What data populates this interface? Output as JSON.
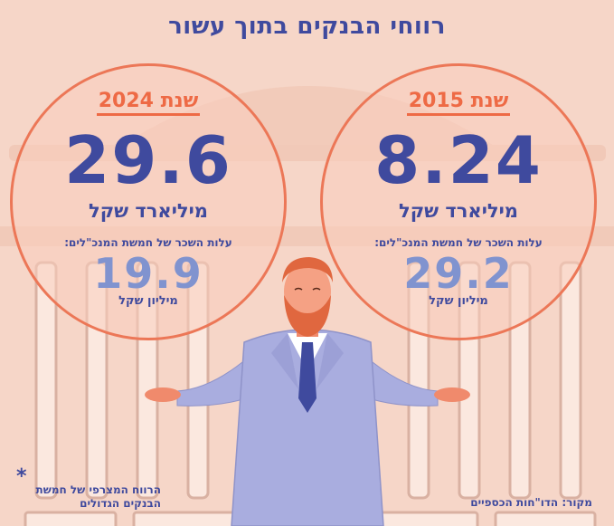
{
  "title": "רווחי הבנקים בתוך עשור",
  "panels": [
    {
      "year_label": "שנת 2015",
      "profit_value": "8.24",
      "profit_unit": "מיליארד שקל",
      "salary_desc": "עלות השכר של חמשת המנכ\"לים:",
      "salary_value": "29.2",
      "salary_unit": "מיליון שקל"
    },
    {
      "year_label": "שנת 2024",
      "profit_value": "29.6",
      "profit_unit": "מיליארד שקל",
      "salary_desc": "עלות השכר של חמשת המנכ\"לים:",
      "salary_value": "19.9",
      "salary_unit": "מיליון שקל"
    }
  ],
  "source": "מקור: הדו\"חות הכספיים",
  "footnote": {
    "mark": "*",
    "text": "הרווח המצרפי של חמשת הבנקים הגדולים"
  },
  "colors": {
    "background": "#f6d6c8",
    "accent": "#ee6a45",
    "navy": "#3f4a9e",
    "light_blue": "#8093cf",
    "suit": "#a9addf"
  }
}
